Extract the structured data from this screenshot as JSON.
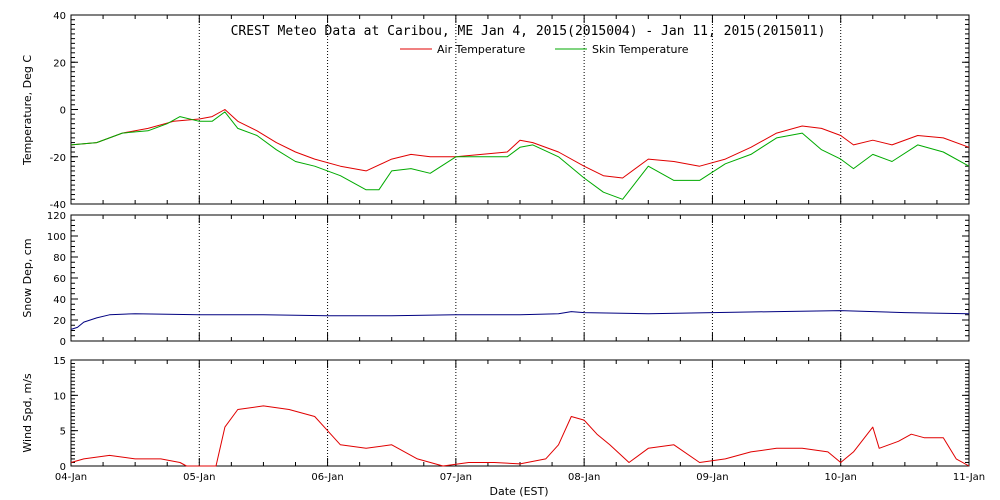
{
  "chart_data": {
    "type": "line",
    "title": "CREST Meteo Data at Caribou, ME   Jan  4, 2015(2015004) - Jan 11, 2015(2015011)",
    "xlabel": "Date (EST)",
    "x_ticks": [
      "04-Jan",
      "05-Jan",
      "06-Jan",
      "07-Jan",
      "08-Jan",
      "09-Jan",
      "10-Jan",
      "11-Jan"
    ],
    "x_range_days": [
      0,
      7
    ],
    "grid": true,
    "legend_position": "top-center",
    "panels": [
      {
        "id": "temperature",
        "ylabel": "Temperature, Deg C",
        "ylim": [
          -40,
          40
        ],
        "y_ticks": [
          "40",
          "20",
          "0",
          "-20",
          "-40"
        ],
        "series": [
          {
            "name": "Air Temperature",
            "color": "#e00000",
            "x_days": [
              0,
              0.2,
              0.4,
              0.6,
              0.8,
              1.0,
              1.1,
              1.2,
              1.3,
              1.45,
              1.6,
              1.75,
              1.9,
              2.1,
              2.3,
              2.5,
              2.65,
              2.8,
              3.0,
              3.2,
              3.4,
              3.5,
              3.6,
              3.8,
              4.0,
              4.15,
              4.3,
              4.5,
              4.7,
              4.9,
              5.1,
              5.3,
              5.5,
              5.7,
              5.85,
              6.0,
              6.1,
              6.25,
              6.4,
              6.6,
              6.8,
              7.0
            ],
            "y": [
              -15,
              -14,
              -10,
              -8,
              -5,
              -4,
              -3,
              0,
              -5,
              -9,
              -14,
              -18,
              -21,
              -24,
              -26,
              -21,
              -19,
              -20,
              -20,
              -19,
              -18,
              -13,
              -14,
              -18,
              -24,
              -28,
              -29,
              -21,
              -22,
              -24,
              -21,
              -16,
              -10,
              -7,
              -8,
              -11,
              -15,
              -13,
              -15,
              -11,
              -12,
              -16
            ]
          },
          {
            "name": "Skin Temperature",
            "color": "#00aa00",
            "x_days": [
              0,
              0.2,
              0.4,
              0.6,
              0.75,
              0.85,
              1.0,
              1.1,
              1.2,
              1.3,
              1.45,
              1.6,
              1.75,
              1.9,
              2.1,
              2.3,
              2.4,
              2.5,
              2.65,
              2.8,
              3.0,
              3.2,
              3.4,
              3.5,
              3.6,
              3.8,
              4.0,
              4.15,
              4.3,
              4.5,
              4.7,
              4.9,
              5.1,
              5.3,
              5.5,
              5.7,
              5.85,
              6.0,
              6.1,
              6.25,
              6.4,
              6.6,
              6.8,
              7.0
            ],
            "y": [
              -15,
              -14,
              -10,
              -9,
              -6,
              -3,
              -5,
              -5,
              -1,
              -8,
              -11,
              -17,
              -22,
              -24,
              -28,
              -34,
              -34,
              -26,
              -25,
              -27,
              -20,
              -20,
              -20,
              -16,
              -15,
              -20,
              -29,
              -35,
              -38,
              -24,
              -30,
              -30,
              -23,
              -19,
              -12,
              -10,
              -17,
              -21,
              -25,
              -19,
              -22,
              -15,
              -18,
              -24
            ]
          }
        ]
      },
      {
        "id": "snow-depth",
        "ylabel": "Snow Dep, cm",
        "ylim": [
          0,
          120
        ],
        "y_ticks": [
          "120",
          "100",
          "80",
          "60",
          "40",
          "20",
          "0"
        ],
        "series": [
          {
            "name": "",
            "color": "#000080",
            "x_days": [
              0,
              0.05,
              0.1,
              0.2,
              0.3,
              0.5,
              1.0,
              1.5,
              2.0,
              2.5,
              3.0,
              3.5,
              3.8,
              3.9,
              4.0,
              4.5,
              5.0,
              5.5,
              6.0,
              6.5,
              7.0
            ],
            "y": [
              11,
              13,
              18,
              22,
              25,
              26,
              25,
              25,
              24,
              24,
              25,
              25,
              26,
              28,
              27,
              26,
              27,
              28,
              29,
              27,
              26
            ]
          }
        ]
      },
      {
        "id": "wind-speed",
        "ylabel": "Wind Spd, m/s",
        "ylim": [
          0,
          15
        ],
        "y_ticks": [
          "15",
          "10",
          "5",
          "0"
        ],
        "series": [
          {
            "name": "",
            "color": "#e00000",
            "x_days": [
              0,
              0.1,
              0.3,
              0.5,
              0.7,
              0.85,
              0.9,
              1.0,
              1.1,
              1.13,
              1.2,
              1.3,
              1.5,
              1.7,
              1.9,
              2.0,
              2.1,
              2.3,
              2.5,
              2.7,
              2.9,
              3.1,
              3.3,
              3.5,
              3.7,
              3.8,
              3.9,
              4.0,
              4.1,
              4.2,
              4.35,
              4.5,
              4.7,
              4.9,
              5.1,
              5.3,
              5.5,
              5.7,
              5.9,
              6.0,
              6.1,
              6.25,
              6.3,
              6.45,
              6.55,
              6.65,
              6.8,
              6.9,
              7.0
            ],
            "y": [
              0.5,
              1.0,
              1.5,
              1.0,
              1.0,
              0.5,
              0,
              0,
              0,
              0,
              5.5,
              8.0,
              8.5,
              8.0,
              7.0,
              5.0,
              3.0,
              2.5,
              3.0,
              1.0,
              0,
              0.5,
              0.5,
              0.3,
              1.0,
              3.0,
              7.0,
              6.5,
              4.5,
              3.0,
              0.5,
              2.5,
              3.0,
              0.5,
              1.0,
              2.0,
              2.5,
              2.5,
              2.0,
              0.5,
              2.0,
              5.5,
              2.5,
              3.5,
              4.5,
              4.0,
              4.0,
              1.0,
              0
            ]
          }
        ]
      }
    ]
  }
}
